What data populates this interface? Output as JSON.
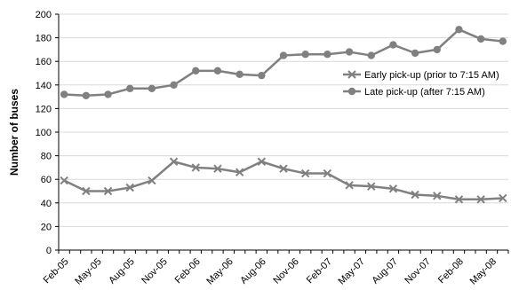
{
  "chart_data": {
    "type": "line",
    "title": "",
    "xlabel": "",
    "ylabel": "Number of buses",
    "ylim": [
      0,
      200
    ],
    "y_ticks": [
      0,
      20,
      40,
      60,
      80,
      100,
      120,
      140,
      160,
      180,
      200
    ],
    "x_tick_labels": [
      "Feb-05",
      "May-05",
      "Aug-05",
      "Nov-05",
      "Feb-06",
      "May-06",
      "Aug-06",
      "Nov-06",
      "Feb-07",
      "May-07",
      "Aug-07",
      "Nov-07",
      "Feb-08",
      "May-08"
    ],
    "categories": [
      "Feb-05",
      "Mar-05",
      "Apr-05",
      "May-05",
      "Jun-05",
      "Jul-05",
      "Aug-05",
      "Sep-05",
      "Oct-05",
      "Nov-05",
      "Dec-05",
      "Jan-06",
      "Feb-06",
      "Mar-06",
      "Apr-06",
      "May-06",
      "Jun-06",
      "Jul-06",
      "Aug-06",
      "Sep-06",
      "Oct-06",
      "Nov-06",
      "Dec-06",
      "Jan-07",
      "Feb-07",
      "Mar-07",
      "Apr-07",
      "May-07",
      "Jun-07",
      "Jul-07",
      "Aug-07",
      "Sep-07",
      "Oct-07",
      "Nov-07",
      "Dec-07",
      "Jan-08",
      "Feb-08",
      "Mar-08",
      "Apr-08",
      "May-08",
      "Jun-08"
    ],
    "grid": "horizontal",
    "legend_position": "right",
    "series": [
      {
        "name": "Early pick-up (prior to 7:15 AM)",
        "marker": "x",
        "color": "#808080",
        "points": [
          {
            "x": "Feb-05",
            "y": 59
          },
          {
            "x": "Apr-05",
            "y": 50
          },
          {
            "x": "Jun-05",
            "y": 50
          },
          {
            "x": "Aug-05",
            "y": 53
          },
          {
            "x": "Oct-05",
            "y": 59
          },
          {
            "x": "Dec-05",
            "y": 75
          },
          {
            "x": "Feb-06",
            "y": 70
          },
          {
            "x": "Apr-06",
            "y": 69
          },
          {
            "x": "Jun-06",
            "y": 66
          },
          {
            "x": "Aug-06",
            "y": 75
          },
          {
            "x": "Oct-06",
            "y": 69
          },
          {
            "x": "Dec-06",
            "y": 65
          },
          {
            "x": "Feb-07",
            "y": 65
          },
          {
            "x": "Apr-07",
            "y": 55
          },
          {
            "x": "Jun-07",
            "y": 54
          },
          {
            "x": "Aug-07",
            "y": 52
          },
          {
            "x": "Oct-07",
            "y": 47
          },
          {
            "x": "Dec-07",
            "y": 46
          },
          {
            "x": "Feb-08",
            "y": 43
          },
          {
            "x": "Apr-08",
            "y": 43
          },
          {
            "x": "Jun-08",
            "y": 44
          }
        ]
      },
      {
        "name": "Late pick-up (after 7:15 AM)",
        "marker": "circle",
        "color": "#808080",
        "points": [
          {
            "x": "Feb-05",
            "y": 132
          },
          {
            "x": "Apr-05",
            "y": 131
          },
          {
            "x": "Jun-05",
            "y": 132
          },
          {
            "x": "Aug-05",
            "y": 137
          },
          {
            "x": "Oct-05",
            "y": 137
          },
          {
            "x": "Dec-05",
            "y": 140
          },
          {
            "x": "Feb-06",
            "y": 152
          },
          {
            "x": "Apr-06",
            "y": 152
          },
          {
            "x": "Jun-06",
            "y": 149
          },
          {
            "x": "Aug-06",
            "y": 148
          },
          {
            "x": "Oct-06",
            "y": 165
          },
          {
            "x": "Dec-06",
            "y": 166
          },
          {
            "x": "Feb-07",
            "y": 166
          },
          {
            "x": "Apr-07",
            "y": 168
          },
          {
            "x": "Jun-07",
            "y": 165
          },
          {
            "x": "Aug-07",
            "y": 174
          },
          {
            "x": "Oct-07",
            "y": 167
          },
          {
            "x": "Dec-07",
            "y": 170
          },
          {
            "x": "Feb-08",
            "y": 187
          },
          {
            "x": "Apr-08",
            "y": 179
          },
          {
            "x": "Jun-08",
            "y": 177
          }
        ]
      }
    ]
  }
}
